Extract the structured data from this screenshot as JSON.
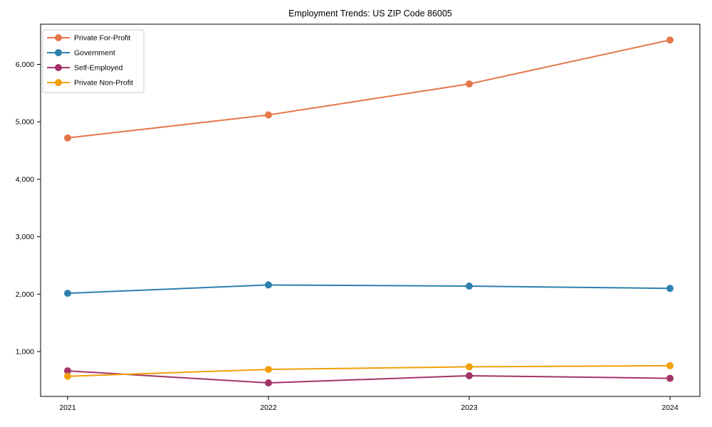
{
  "chart_data": {
    "type": "line",
    "title": "Employment Trends: US ZIP Code 86005",
    "x_tick_labels": [
      "2021",
      "2022",
      "2023",
      "2024"
    ],
    "y_ticks": [
      1000,
      2000,
      3000,
      4000,
      5000,
      6000
    ],
    "y_tick_labels": [
      "1,000",
      "2,000",
      "3,000",
      "4,000",
      "5,000",
      "6,000"
    ],
    "ylim": [
      220,
      6700
    ],
    "grid": false,
    "legend_position": "upper left",
    "marker": "circle",
    "axis_color": "#000000",
    "legend_border_color": "#cccccc",
    "series": [
      {
        "name": "Private For-Profit",
        "color": "#e5764a",
        "values": [
          4720,
          5120,
          5660,
          6425
        ]
      },
      {
        "name": "Government",
        "color": "#2e80ae",
        "values": [
          2015,
          2160,
          2140,
          2100
        ]
      },
      {
        "name": "Self-Employed",
        "color": "#a23468",
        "values": [
          665,
          455,
          580,
          535
        ]
      },
      {
        "name": "Private Non-Profit",
        "color": "#f0a00a",
        "values": [
          570,
          690,
          735,
          755
        ]
      }
    ]
  }
}
